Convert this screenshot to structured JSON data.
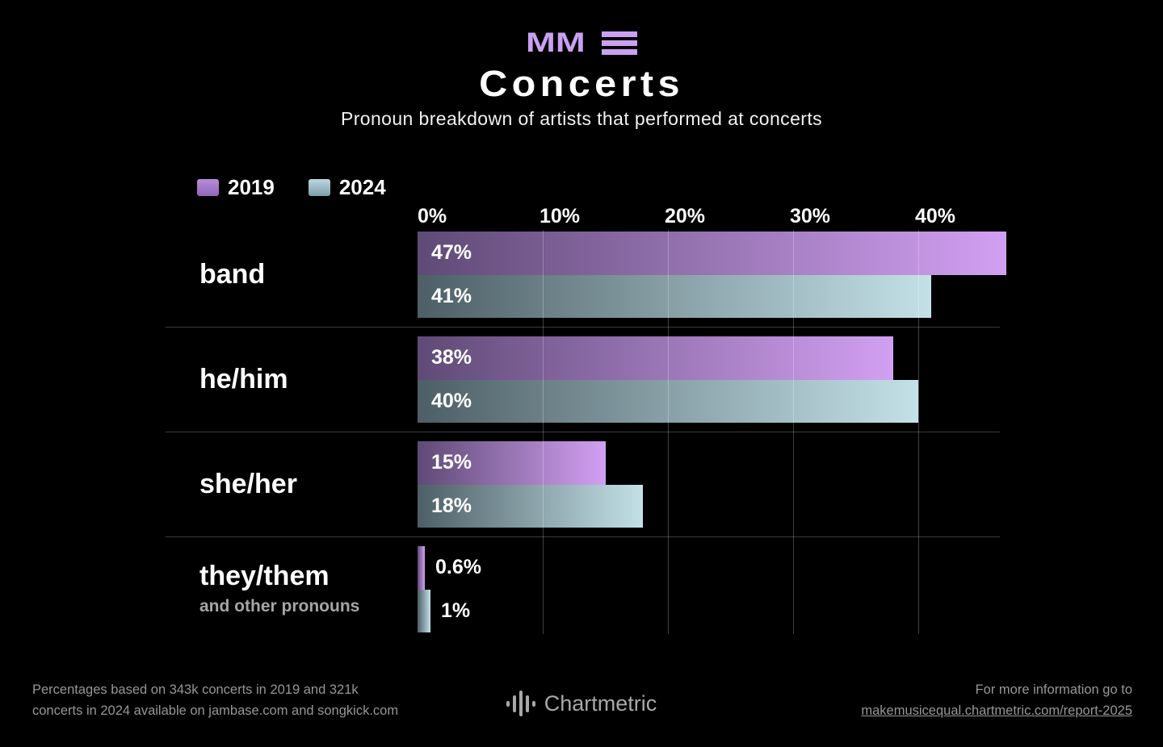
{
  "header": {
    "logo_text": "MM",
    "logo_alt": "MME",
    "logo_color": "#c9a0f2",
    "title": "Concerts",
    "subtitle": "Pronoun breakdown of artists that performed at concerts"
  },
  "legend": {
    "items": [
      {
        "label": "2019",
        "swatch_top": "#b78dda",
        "swatch_bottom": "#8f66ba"
      },
      {
        "label": "2024",
        "swatch_top": "#bcd7e0",
        "swatch_bottom": "#7e9fab"
      }
    ]
  },
  "chart_data": {
    "type": "bar",
    "orientation": "horizontal",
    "unit": "%",
    "title": "Concerts",
    "subtitle": "Pronoun breakdown of artists that performed at concerts",
    "categories": [
      {
        "label": "band",
        "sublabel": ""
      },
      {
        "label": "he/him",
        "sublabel": ""
      },
      {
        "label": "she/her",
        "sublabel": ""
      },
      {
        "label": "they/them",
        "sublabel": "and other pronouns"
      }
    ],
    "series": [
      {
        "name": "2019",
        "values": [
          47,
          38,
          15,
          0.6
        ],
        "value_labels": [
          "47%",
          "38%",
          "15%",
          "0.6%"
        ],
        "gradient_start": "#5f4a76",
        "gradient_end": "#d2a0f2"
      },
      {
        "name": "2024",
        "values": [
          41,
          40,
          18,
          1
        ],
        "value_labels": [
          "41%",
          "40%",
          "18%",
          "1%"
        ],
        "gradient_start": "#4d5f66",
        "gradient_end": "#c4e1e8"
      }
    ],
    "x_ticks": [
      {
        "label": "0%",
        "value": 0
      },
      {
        "label": "10%",
        "value": 10
      },
      {
        "label": "20%",
        "value": 20
      },
      {
        "label": "30%",
        "value": 30
      },
      {
        "label": "40%",
        "value": 40
      }
    ],
    "xlim": [
      0,
      46.5
    ],
    "grid": true,
    "legend_position": "top-left"
  },
  "footer": {
    "source_line1": "Percentages based on 343k concerts in 2019 and 321k",
    "source_line2": "concerts in 2024 available on jambase.com and songkick.com",
    "brand": "Chartmetric",
    "info_line1": "For more information go to",
    "info_link": "makemusicequal.chartmetric.com/report-2025"
  }
}
